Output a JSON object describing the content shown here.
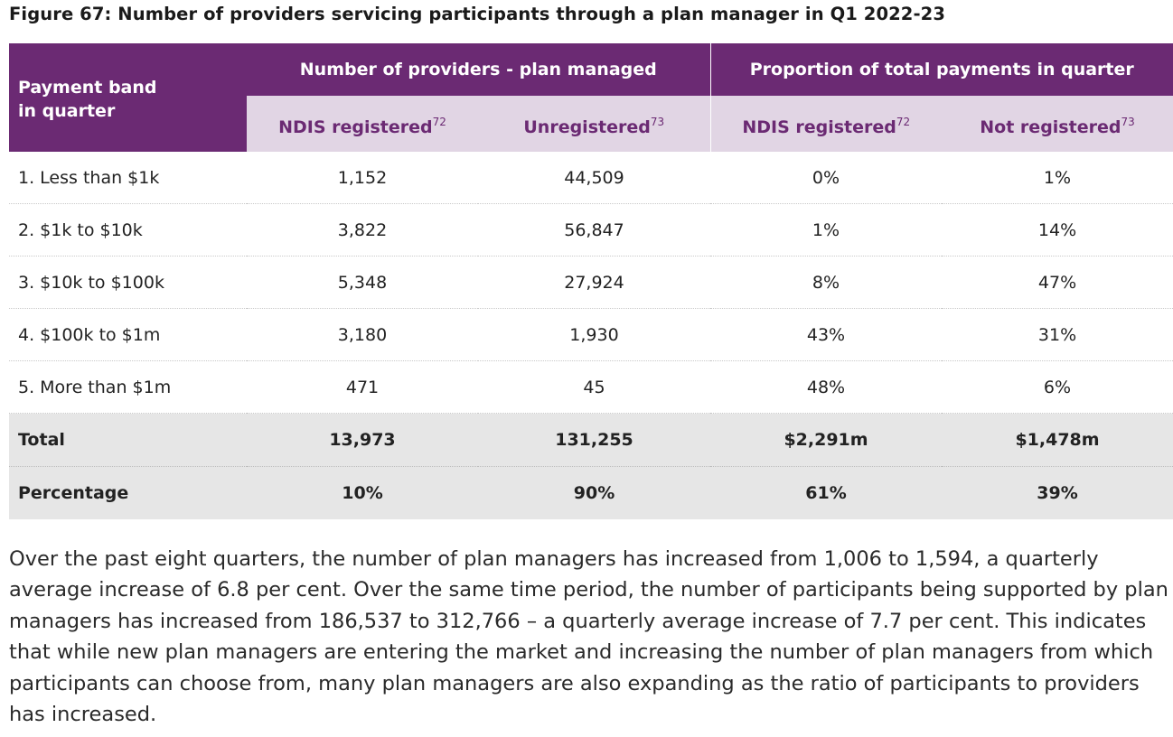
{
  "title": "Figure 67: Number of providers servicing participants through a plan manager in Q1 2022-23",
  "table": {
    "band_header": [
      "Payment band",
      "in quarter"
    ],
    "group_headers": [
      "Number of providers - plan managed",
      "Proportion of total payments in quarter"
    ],
    "sub_headers": [
      {
        "label": "NDIS registered",
        "sup": "72"
      },
      {
        "label": "Unregistered",
        "sup": "73"
      },
      {
        "label": "NDIS registered",
        "sup": "72"
      },
      {
        "label": "Not registered",
        "sup": "73"
      }
    ],
    "rows": [
      {
        "band": "1. Less than $1k",
        "ndis_registered": "1,152",
        "unregistered": "44,509",
        "prop_ndis": "0%",
        "prop_not_registered": "1%"
      },
      {
        "band": "2. $1k to $10k",
        "ndis_registered": "3,822",
        "unregistered": "56,847",
        "prop_ndis": "1%",
        "prop_not_registered": "14%"
      },
      {
        "band": "3. $10k to $100k",
        "ndis_registered": "5,348",
        "unregistered": "27,924",
        "prop_ndis": "8%",
        "prop_not_registered": "47%"
      },
      {
        "band": "4. $100k to $1m",
        "ndis_registered": "3,180",
        "unregistered": "1,930",
        "prop_ndis": "43%",
        "prop_not_registered": "31%"
      },
      {
        "band": "5. More than $1m",
        "ndis_registered": "471",
        "unregistered": "45",
        "prop_ndis": "48%",
        "prop_not_registered": "6%"
      }
    ],
    "total": {
      "band": "Total",
      "ndis_registered": "13,973",
      "unregistered": "131,255",
      "prop_ndis": "$2,291m",
      "prop_not_registered": "$1,478m"
    },
    "percentage": {
      "band": "Percentage",
      "ndis_registered": "10%",
      "unregistered": "90%",
      "prop_ndis": "61%",
      "prop_not_registered": "39%"
    }
  },
  "body_text": "Over the past eight quarters, the number of plan managers has increased from 1,006 to 1,594, a quarterly average increase of 6.8 per cent. Over the same time period, the number of participants being supported by plan managers has increased from 186,537 to 312,766 – a quarterly average increase of 7.7 per cent. This indicates that while new plan managers are entering the market and increasing the number of plan managers from which participants can choose from, many plan managers are also expanding as the ratio of participants to providers has increased.",
  "colors": {
    "header_purple": "#6b2a73",
    "subheader_lilac": "#e1d5e4",
    "summary_grey": "#e6e6e6"
  }
}
